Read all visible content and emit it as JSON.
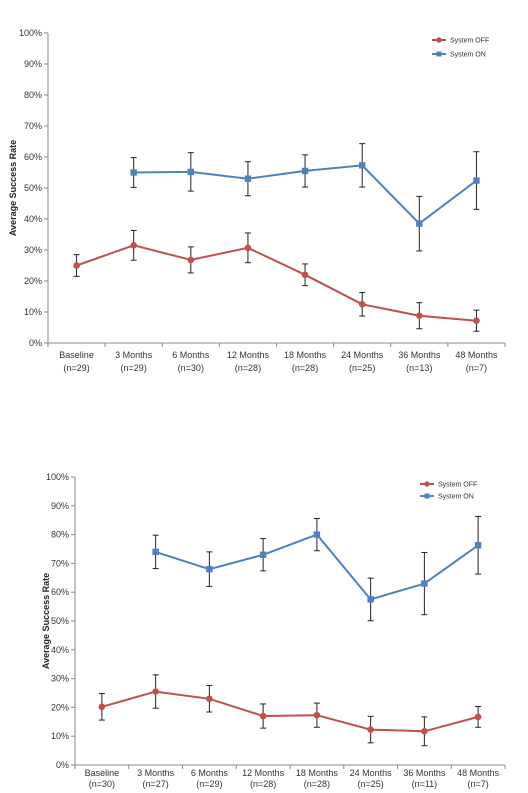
{
  "chart_data": [
    {
      "type": "line",
      "ylabel": "Average Success Rate",
      "ylim": [
        0,
        100
      ],
      "yticks": [
        "0%",
        "10%",
        "20%",
        "30%",
        "40%",
        "50%",
        "60%",
        "70%",
        "80%",
        "90%",
        "100%"
      ],
      "categories": [
        [
          "Baseline",
          "(n=29)"
        ],
        [
          "3 Months",
          "(n=29)"
        ],
        [
          "6 Months",
          "(n=30)"
        ],
        [
          "12 Months",
          "(n=28)"
        ],
        [
          "18 Months",
          "(n=28)"
        ],
        [
          "24 Months",
          "(n=25)"
        ],
        [
          "36 Months",
          "(n=13)"
        ],
        [
          "48 Months",
          "(n=7)"
        ]
      ],
      "legend_position": "top-right",
      "grid": false,
      "series": [
        {
          "name": "System OFF",
          "color": "#c0504d",
          "marker": "circle",
          "values": [
            25,
            31.5,
            26.8,
            30.7,
            22,
            12.5,
            8.8,
            7.2
          ],
          "err": [
            3.5,
            4.8,
            4.2,
            4.8,
            3.5,
            3.8,
            4.2,
            3.4
          ]
        },
        {
          "name": "System ON",
          "color": "#4f81bd",
          "marker": "square",
          "values": [
            null,
            55,
            55.2,
            53,
            55.5,
            57.3,
            38.5,
            52.4
          ],
          "err": [
            null,
            4.8,
            6.2,
            5.5,
            5.2,
            7,
            8.8,
            9.3
          ]
        }
      ]
    },
    {
      "type": "line",
      "ylabel": "Average Success Rate",
      "ylim": [
        0,
        100
      ],
      "yticks": [
        "0%",
        "10%",
        "20%",
        "30%",
        "40%",
        "50%",
        "60%",
        "70%",
        "80%",
        "90%",
        "100%"
      ],
      "categories": [
        [
          "Baseline",
          "(n=30)"
        ],
        [
          "3 Months",
          "(n=27)"
        ],
        [
          "6 Months",
          "(n=29)"
        ],
        [
          "12 Months",
          "(n=28)"
        ],
        [
          "18 Months",
          "(n=28)"
        ],
        [
          "24 Months",
          "(n=25)"
        ],
        [
          "36 Months",
          "(n=11)"
        ],
        [
          "48 Months",
          "(n=7)"
        ]
      ],
      "legend_position": "top-right",
      "grid": false,
      "series": [
        {
          "name": "System OFF",
          "color": "#c0504d",
          "marker": "circle",
          "values": [
            20.2,
            25.5,
            23,
            17,
            17.3,
            12.3,
            11.7,
            16.7
          ],
          "err": [
            4.6,
            5.8,
            4.6,
            4.2,
            4.2,
            4.6,
            5,
            3.6
          ]
        },
        {
          "name": "System ON",
          "color": "#4f81bd",
          "marker": "square",
          "values": [
            null,
            74,
            68,
            73,
            80,
            57.5,
            63,
            76.3
          ],
          "err": [
            null,
            5.8,
            6,
            5.6,
            5.6,
            7.4,
            10.8,
            10
          ]
        }
      ]
    }
  ]
}
